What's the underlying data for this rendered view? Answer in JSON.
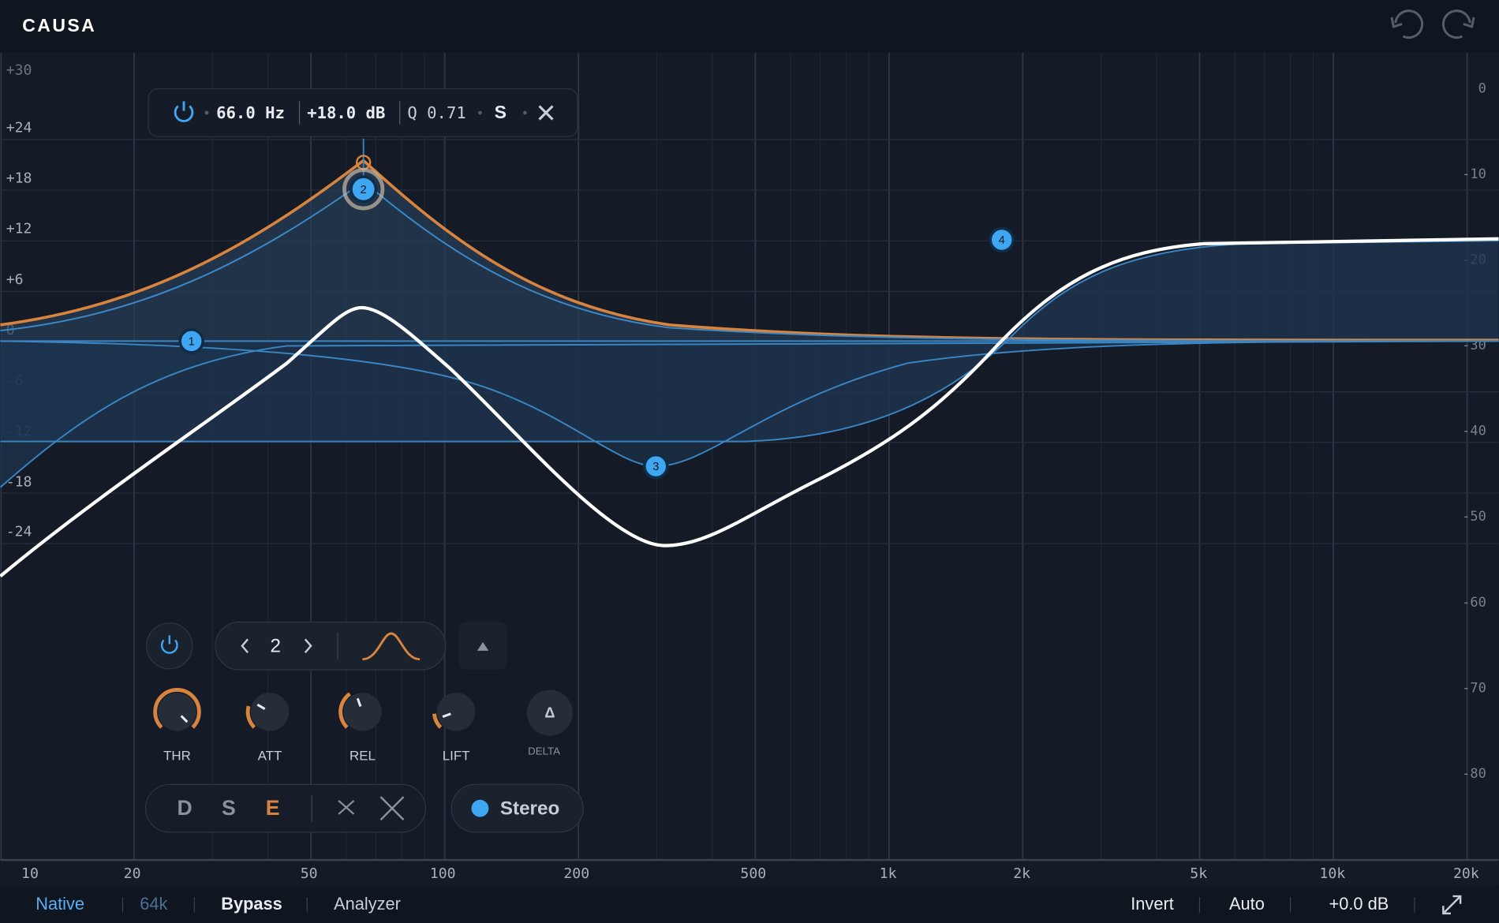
{
  "app": {
    "title": "CAUSA"
  },
  "graph": {
    "db_labels": [
      "+30",
      "+24",
      "+18",
      "+12",
      "+6",
      "0",
      "-6",
      "-12",
      "-18",
      "-24"
    ],
    "right_labels": [
      "0",
      "-10",
      "-20",
      "-30",
      "-40",
      "-50",
      "-60",
      "-70",
      "-80"
    ],
    "freq_labels": [
      "10",
      "20",
      "50",
      "100",
      "200",
      "500",
      "1k",
      "2k",
      "5k",
      "10k",
      "20k"
    ]
  },
  "band_popup": {
    "freq": "66.0 Hz",
    "gain": "+18.0 dB",
    "q": "Q 0.71",
    "solo": "S"
  },
  "nodes": [
    "1",
    "2",
    "3",
    "4"
  ],
  "panel": {
    "band": "2",
    "knobs": [
      "THR",
      "ATT",
      "REL",
      "LIFT"
    ],
    "delta_icon": "Δ",
    "delta": "DELTA",
    "modes": [
      "D",
      "S",
      "E"
    ],
    "channel": "Stereo"
  },
  "footer": {
    "left": [
      "Native",
      "64k",
      "Bypass",
      "Analyzer"
    ],
    "right": [
      "Invert",
      "Auto",
      "+0.0 dB"
    ]
  }
}
